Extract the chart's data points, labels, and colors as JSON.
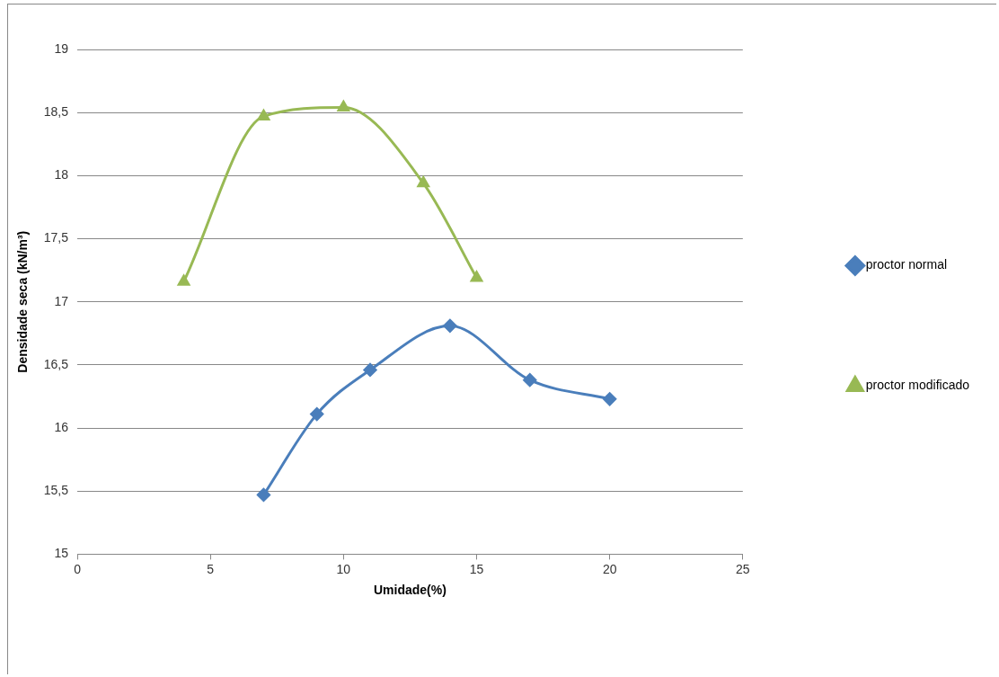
{
  "chart_data": {
    "type": "line",
    "xlabel": "Umidade(%)",
    "ylabel": "Densidade seca (kN/m³)",
    "xlim": [
      0,
      25
    ],
    "xticks": [
      0,
      5,
      10,
      15,
      20,
      25
    ],
    "ylim": [
      15,
      19
    ],
    "yticks": [
      {
        "value": 15,
        "label": "15"
      },
      {
        "value": 15.5,
        "label": "15,5"
      },
      {
        "value": 16,
        "label": "16"
      },
      {
        "value": 16.5,
        "label": "16,5"
      },
      {
        "value": 17,
        "label": "17"
      },
      {
        "value": 17.5,
        "label": "17,5"
      },
      {
        "value": 18,
        "label": "18"
      },
      {
        "value": 18.5,
        "label": "18,5"
      },
      {
        "value": 19,
        "label": "19"
      }
    ],
    "grid": "y",
    "legend": "right",
    "series": [
      {
        "name": "proctor normal",
        "color": "#4a7ebb",
        "marker": "diamond",
        "x": [
          7,
          9,
          11,
          14,
          17,
          20
        ],
        "values": [
          15.47,
          16.11,
          16.46,
          16.81,
          16.38,
          16.23
        ]
      },
      {
        "name": "proctor modificado",
        "color": "#98b954",
        "marker": "triangle",
        "x": [
          4,
          7,
          10,
          13,
          15
        ],
        "values": [
          17.16,
          18.47,
          18.54,
          17.94,
          17.19
        ]
      }
    ]
  }
}
